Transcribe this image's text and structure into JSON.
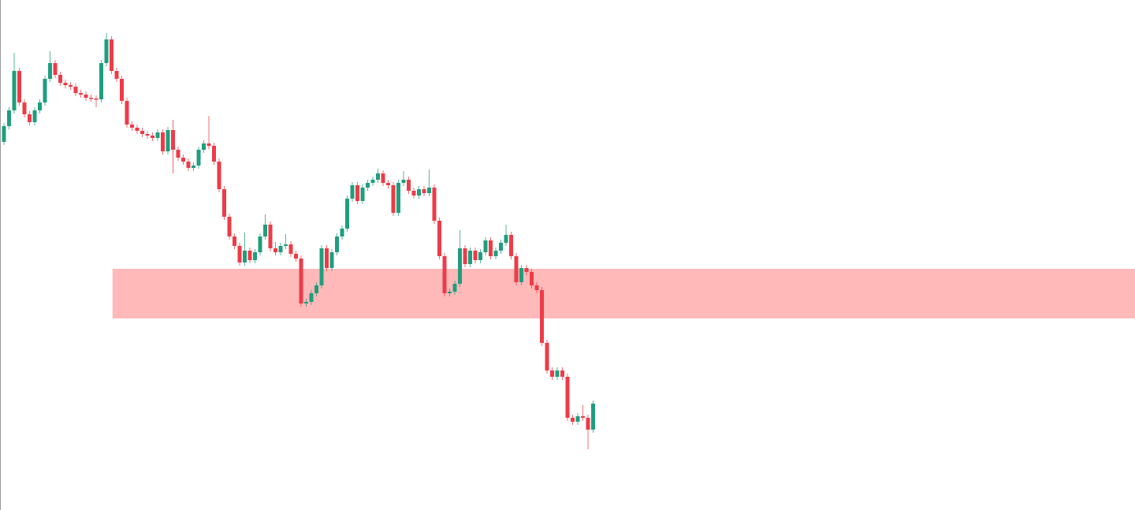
{
  "chart_data": {
    "type": "candlestick",
    "up_color": "#1f9e7e",
    "down_color": "#ee3b47",
    "ylim": [
      0,
      647
    ],
    "zone": {
      "low": 243,
      "high": 306,
      "from": 22,
      "color": "#ffb9b9"
    },
    "open": [
      467,
      487,
      507,
      557,
      517,
      502,
      492,
      507,
      517,
      547,
      567,
      552,
      542,
      539,
      537,
      529,
      527,
      523,
      522,
      521,
      567,
      597,
      557,
      547,
      519,
      489,
      485,
      481,
      477,
      475,
      472,
      479,
      455,
      482,
      457,
      447,
      442,
      434,
      437,
      457,
      465,
      462,
      442,
      407,
      372,
      347,
      335,
      314,
      329,
      317,
      327,
      347,
      362,
      332,
      327,
      335,
      337,
      325,
      319,
      262,
      264,
      275,
      285,
      332,
      307,
      327,
      347,
      357,
      395,
      412,
      392,
      409,
      415,
      419,
      427,
      415,
      412,
      377,
      415,
      419,
      405,
      399,
      407,
      402,
      409,
      367,
      322,
      275,
      277,
      287,
      332,
      312,
      329,
      317,
      327,
      342,
      322,
      329,
      339,
      349,
      322,
      289,
      307,
      302,
      285,
      279,
      212,
      177,
      169,
      177,
      169,
      117,
      112,
      119,
      117,
      102
    ],
    "high": [
      491,
      511,
      580,
      561,
      521,
      506,
      511,
      521,
      551,
      582,
      571,
      556,
      546,
      543,
      541,
      533,
      531,
      527,
      526,
      571,
      605,
      601,
      561,
      551,
      523,
      493,
      489,
      485,
      481,
      479,
      483,
      483,
      486,
      495,
      461,
      451,
      446,
      441,
      461,
      469,
      500,
      466,
      446,
      411,
      376,
      351,
      339,
      352,
      333,
      331,
      351,
      375,
      366,
      340,
      339,
      350,
      341,
      329,
      323,
      268,
      279,
      289,
      336,
      336,
      331,
      351,
      361,
      399,
      416,
      416,
      413,
      419,
      423,
      433,
      431,
      419,
      416,
      419,
      430,
      423,
      409,
      411,
      411,
      432,
      413,
      371,
      326,
      281,
      291,
      355,
      336,
      333,
      333,
      331,
      346,
      346,
      333,
      343,
      362,
      353,
      326,
      311,
      311,
      306,
      289,
      283,
      216,
      181,
      181,
      181,
      173,
      121,
      123,
      133,
      121,
      139
    ],
    "low": [
      463,
      483,
      503,
      513,
      498,
      488,
      488,
      503,
      513,
      543,
      548,
      538,
      535,
      533,
      525,
      523,
      519,
      518,
      511,
      517,
      563,
      553,
      543,
      515,
      485,
      481,
      477,
      473,
      471,
      468,
      468,
      451,
      451,
      427,
      443,
      438,
      430,
      430,
      433,
      453,
      458,
      438,
      403,
      368,
      343,
      331,
      310,
      310,
      313,
      313,
      323,
      343,
      328,
      323,
      323,
      331,
      321,
      315,
      258,
      258,
      260,
      271,
      281,
      303,
      303,
      323,
      343,
      353,
      391,
      388,
      388,
      405,
      411,
      415,
      411,
      408,
      373,
      373,
      411,
      401,
      395,
      395,
      398,
      398,
      363,
      318,
      271,
      271,
      273,
      283,
      308,
      308,
      313,
      313,
      323,
      318,
      318,
      325,
      335,
      318,
      285,
      285,
      298,
      281,
      275,
      208,
      173,
      165,
      165,
      165,
      113,
      108,
      108,
      113,
      77,
      98
    ],
    "close": [
      487,
      507,
      557,
      517,
      502,
      492,
      507,
      517,
      547,
      567,
      552,
      542,
      539,
      537,
      529,
      527,
      523,
      522,
      521,
      567,
      597,
      557,
      547,
      519,
      489,
      485,
      481,
      477,
      475,
      472,
      479,
      455,
      482,
      457,
      447,
      442,
      434,
      437,
      457,
      465,
      462,
      442,
      407,
      372,
      347,
      335,
      314,
      329,
      317,
      327,
      347,
      362,
      332,
      327,
      335,
      337,
      325,
      319,
      262,
      264,
      275,
      285,
      332,
      307,
      327,
      347,
      357,
      395,
      412,
      392,
      409,
      415,
      419,
      427,
      415,
      412,
      377,
      415,
      419,
      405,
      399,
      407,
      402,
      409,
      367,
      322,
      275,
      277,
      287,
      332,
      312,
      329,
      317,
      327,
      342,
      322,
      329,
      339,
      349,
      322,
      289,
      307,
      302,
      285,
      279,
      212,
      177,
      169,
      177,
      169,
      117,
      112,
      119,
      117,
      102,
      135
    ]
  }
}
